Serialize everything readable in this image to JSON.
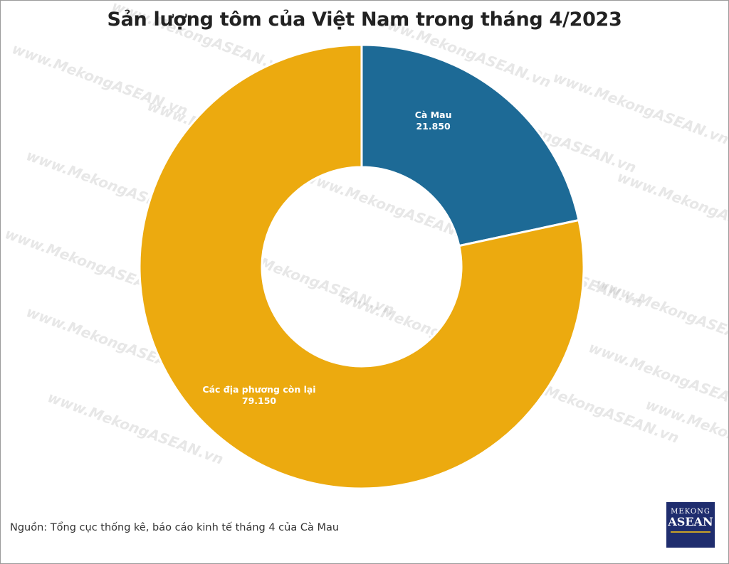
{
  "title": "Sản lượng tôm của Việt Nam trong tháng 4/2023",
  "source": "Nguồn: Tổng cục thống kê, báo cáo kinh tế tháng 4 của Cà Mau",
  "watermark": "www.MekongASEAN.vn",
  "logo": {
    "line1": "MEKONG",
    "line2": "ASEAN"
  },
  "colors": {
    "ca_mau": "#1d6a96",
    "others": "#ecaa0f",
    "logo_bg": "#1f2d6e"
  },
  "chart_data": {
    "type": "pie",
    "donut": true,
    "title": "Sản lượng tôm của Việt Nam trong tháng 4/2023",
    "labels": [
      "Cà Mau",
      "Các địa phương còn lại"
    ],
    "value_labels": [
      "21.850",
      "79.150"
    ],
    "values": [
      21850,
      79150
    ],
    "colors": [
      "#1d6a96",
      "#ecaa0f"
    ]
  }
}
